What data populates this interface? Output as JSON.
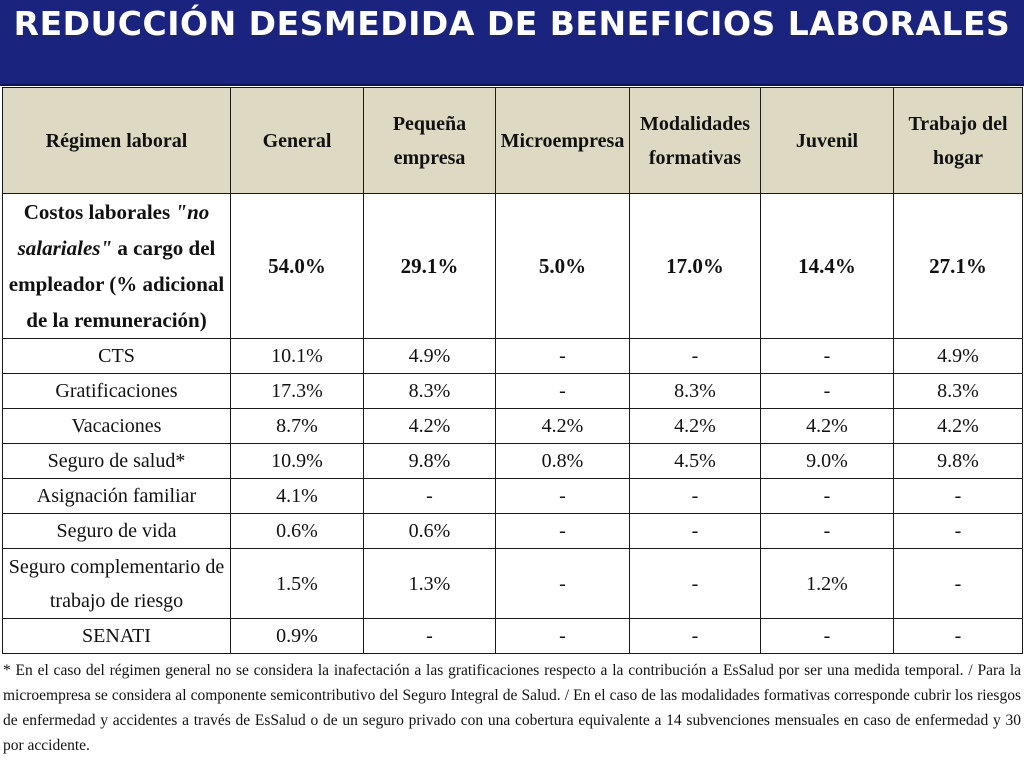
{
  "slide": {
    "title": "REDUCCIÓN DESMEDIDA DE BENEFICIOS LABORALES"
  },
  "table": {
    "headers": [
      "Régimen laboral",
      "General",
      "Pequeña empresa",
      "Microempresa",
      "Modalidades formativas",
      "Juvenil",
      "Trabajo del hogar"
    ],
    "summary_row": {
      "label": "Costos laborales \"no salariales\" a cargo del empleador (% adicional de la remuneración)",
      "values": [
        "54.0%",
        "29.1%",
        "5.0%",
        "17.0%",
        "14.4%",
        "27.1%"
      ]
    },
    "rows": [
      {
        "label": "CTS",
        "values": [
          "10.1%",
          "4.9%",
          "-",
          "-",
          "-",
          "4.9%"
        ]
      },
      {
        "label": "Gratificaciones",
        "values": [
          "17.3%",
          "8.3%",
          "-",
          "8.3%",
          "-",
          "8.3%"
        ]
      },
      {
        "label": "Vacaciones",
        "values": [
          "8.7%",
          "4.2%",
          "4.2%",
          "4.2%",
          "4.2%",
          "4.2%"
        ]
      },
      {
        "label": "Seguro de salud*",
        "values": [
          "10.9%",
          "9.8%",
          "0.8%",
          "4.5%",
          "9.0%",
          "9.8%"
        ]
      },
      {
        "label": "Asignación familiar",
        "values": [
          "4.1%",
          "-",
          "-",
          "-",
          "-",
          "-"
        ]
      },
      {
        "label": "Seguro de vida",
        "values": [
          "0.6%",
          "0.6%",
          "-",
          "-",
          "-",
          "-"
        ]
      },
      {
        "label": "Seguro complementario de trabajo de riesgo",
        "values": [
          "1.5%",
          "1.3%",
          "-",
          "-",
          "1.2%",
          "-"
        ]
      },
      {
        "label": "SENATI",
        "values": [
          "0.9%",
          "-",
          "-",
          "-",
          "-",
          "-"
        ]
      }
    ]
  },
  "footnote": "* En el caso del régimen general no se considera la inafectación a las gratificaciones respecto a la contribución a EsSalud por ser una medida temporal. / Para la microempresa se considera al componente semicontributivo del Seguro Integral de Salud. / En el caso de las modalidades formativas corresponde cubrir los riesgos de enfermedad y accidentes a través de EsSalud o de un seguro privado con una cobertura equivalente a 14 subvenciones mensuales en caso de enfermedad y 30 por accidente.",
  "colors": {
    "title_bg": "#1a237e",
    "header_bg": "#ddd9c3"
  }
}
